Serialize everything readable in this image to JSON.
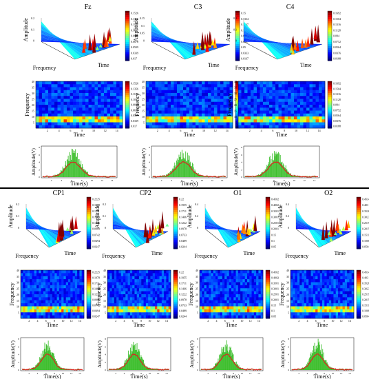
{
  "chart_data": [
    {
      "type": "heatmap",
      "panel": "Fz",
      "title": "Fz",
      "rows": [
        {
          "kind": "surface3d",
          "zlabel": "Amplitude",
          "xlabel": "Frequency",
          "ylabel": "Time",
          "zticks": [
            "0.2",
            "0.1",
            "0"
          ],
          "cbar": [
            "0.1526",
            "0.1356",
            "0.1187",
            "0.1017",
            "0.0848",
            "0.0678",
            "0.0509",
            "0.0339",
            "0.017"
          ]
        },
        {
          "kind": "spectrogram",
          "ylabel": "Frequency",
          "xlabel": "Time",
          "yticks": [
            "40",
            "35",
            "30",
            "25",
            "20",
            "15",
            "10",
            "5"
          ],
          "xticks": [
            "2",
            "4",
            "6",
            "8",
            "10",
            "12",
            "14"
          ],
          "cbar": [
            "0.1526",
            "0.1356",
            "0.1187",
            "0.1017",
            "0.0848",
            "0.0678",
            "0.0509",
            "0.0339",
            "0.017"
          ]
        },
        {
          "kind": "envelope",
          "ylabel": "Amplitude(V)",
          "xlabel": "Time(s)",
          "yticks": [
            "8",
            "6",
            "4",
            "2",
            "0"
          ],
          "xticks": [
            "2",
            "4",
            "6",
            "8",
            "10",
            "12",
            "14"
          ]
        }
      ]
    },
    {
      "type": "heatmap",
      "panel": "C3",
      "title": "C3",
      "rows": [
        {
          "kind": "surface3d",
          "zlabel": "Amplitude",
          "xlabel": "Frequency",
          "ylabel": "Time",
          "zticks": [
            "0.15",
            "0.1",
            "0.05",
            "0"
          ],
          "cbar": [
            "0.15",
            "0.1334",
            "0.1167",
            "0.1",
            "0.0834",
            "0.0667",
            "0.05",
            "0.0333",
            "0.0167"
          ]
        },
        {
          "kind": "spectrogram",
          "ylabel": "Frequency",
          "xlabel": "Time",
          "yticks": [
            "40",
            "35",
            "30",
            "25",
            "20",
            "15",
            "10",
            "5"
          ],
          "xticks": [
            "2",
            "4",
            "6",
            "8",
            "10",
            "12",
            "14"
          ],
          "cbar": [
            "0.15",
            "0.1334",
            "0.1167",
            "0.1",
            "0.0834",
            "0.0667",
            "0.05",
            "0.0333",
            "0.0167"
          ]
        },
        {
          "kind": "envelope",
          "ylabel": "Amplitude(V)",
          "xlabel": "Time(s)",
          "yticks": [
            "8",
            "6",
            "4",
            "2",
            "0"
          ],
          "xticks": [
            "2",
            "4",
            "6",
            "8",
            "10",
            "12",
            "14"
          ]
        }
      ]
    },
    {
      "type": "heatmap",
      "panel": "C4",
      "title": "C4",
      "rows": [
        {
          "kind": "surface3d",
          "zlabel": "Amplitude",
          "xlabel": "Frequency",
          "ylabel": "Time",
          "zticks": [
            "0.2",
            "0.1",
            "0"
          ],
          "cbar": [
            "0.1692",
            "0.1504",
            "0.1316",
            "0.1128",
            "0.094",
            "0.0752",
            "0.0564",
            "0.0376",
            "0.0188"
          ]
        },
        {
          "kind": "spectrogram",
          "ylabel": "Frequency",
          "xlabel": "Time",
          "yticks": [
            "40",
            "35",
            "30",
            "25",
            "20",
            "15",
            "10",
            "5"
          ],
          "xticks": [
            "2",
            "4",
            "6",
            "8",
            "10",
            "12",
            "14"
          ],
          "cbar": [
            "0.1692",
            "0.1504",
            "0.1316",
            "0.1128",
            "0.094",
            "0.0752",
            "0.0564",
            "0.0376",
            "0.0188"
          ]
        },
        {
          "kind": "envelope",
          "ylabel": "Amplitude(V)",
          "xlabel": "Time(s)",
          "yticks": [
            "8",
            "6",
            "4",
            "2",
            "0"
          ],
          "xticks": [
            "2",
            "4",
            "6",
            "8",
            "10",
            "12",
            "14"
          ]
        }
      ]
    },
    {
      "type": "heatmap",
      "panel": "CP1",
      "title": "CP1",
      "rows": [
        {
          "kind": "surface3d",
          "zlabel": "Amplitude",
          "xlabel": "Frequency",
          "ylabel": "Time",
          "zticks": [
            "0.2",
            "0.1",
            "0"
          ],
          "cbar": [
            "0.2225",
            "0.1978",
            "0.173",
            "0.1483",
            "0.1236",
            "0.0989",
            "0.0742",
            "0.0494",
            "0.0247"
          ]
        },
        {
          "kind": "spectrogram",
          "ylabel": "Frequency",
          "xlabel": "Time",
          "yticks": [
            "40",
            "35",
            "30",
            "25",
            "20",
            "15",
            "10",
            "5"
          ],
          "xticks": [
            "2",
            "4",
            "6",
            "8",
            "10",
            "12",
            "14"
          ],
          "cbar": [
            "0.2225",
            "0.1978",
            "0.173",
            "0.1483",
            "0.1236",
            "0.0989",
            "0.0742",
            "0.0494",
            "0.0247"
          ]
        },
        {
          "kind": "envelope",
          "ylabel": "Amplitude(V)",
          "xlabel": "Time(s)",
          "yticks": [
            "8",
            "6",
            "4",
            "2",
            "0"
          ],
          "xticks": [
            "2",
            "4",
            "6",
            "8",
            "10",
            "12",
            "14"
          ]
        }
      ]
    },
    {
      "type": "heatmap",
      "panel": "CP2",
      "title": "CP2",
      "rows": [
        {
          "kind": "surface3d",
          "zlabel": "Amplitude",
          "xlabel": "Frequency",
          "ylabel": "Time",
          "zticks": [
            "0.2",
            "0.1",
            "0"
          ],
          "cbar": [
            "0.22",
            "0.1955",
            "0.1711",
            "0.1466",
            "0.1222",
            "0.0978",
            "0.0733",
            "0.0489",
            "0.0244"
          ]
        },
        {
          "kind": "spectrogram",
          "ylabel": "Frequency",
          "xlabel": "Time",
          "yticks": [
            "40",
            "35",
            "30",
            "25",
            "20",
            "15",
            "10",
            "5"
          ],
          "xticks": [
            "2",
            "4",
            "6",
            "8",
            "10",
            "12",
            "14"
          ],
          "cbar": [
            "0.22",
            "0.1955",
            "0.1711",
            "0.1466",
            "0.1222",
            "0.0978",
            "0.0733",
            "0.0489",
            "0.0244"
          ]
        },
        {
          "kind": "envelope",
          "ylabel": "Amplitude(V)",
          "xlabel": "Time(s)",
          "yticks": [
            "8",
            "6",
            "4",
            "2",
            "0"
          ],
          "xticks": [
            "2",
            "4",
            "6",
            "8",
            "10",
            "12",
            "14"
          ]
        }
      ]
    },
    {
      "type": "heatmap",
      "panel": "O1",
      "title": "O1",
      "rows": [
        {
          "kind": "surface3d",
          "zlabel": "Amplitude",
          "xlabel": "Frequency",
          "ylabel": "Time",
          "zticks": [
            "0.4",
            "0.2",
            "0"
          ],
          "cbar": [
            "0.4502",
            "0.4002",
            "0.3501",
            "0.3001",
            "0.2501",
            "0.2001",
            "0.15",
            "0.1",
            "0.05"
          ]
        },
        {
          "kind": "spectrogram",
          "ylabel": "Frequency",
          "xlabel": "Time",
          "yticks": [
            "40",
            "35",
            "30",
            "25",
            "20",
            "15",
            "10",
            "5"
          ],
          "xticks": [
            "2",
            "4",
            "6",
            "8",
            "10",
            "12",
            "14"
          ],
          "cbar": [
            "0.4502",
            "0.4002",
            "0.3501",
            "0.3001",
            "0.2501",
            "0.2001",
            "0.15",
            "0.1",
            "0.05"
          ]
        },
        {
          "kind": "envelope",
          "ylabel": "Amplitude(V)",
          "xlabel": "Time(s)",
          "yticks": [
            "8",
            "6",
            "4",
            "2",
            "0"
          ],
          "xticks": [
            "2",
            "4",
            "6",
            "8",
            "10",
            "12",
            "14"
          ]
        }
      ]
    },
    {
      "type": "heatmap",
      "panel": "O2",
      "title": "O2",
      "rows": [
        {
          "kind": "surface3d",
          "zlabel": "Amplitude",
          "xlabel": "Frequency",
          "ylabel": "Time",
          "zticks": [
            "0.4",
            "0.2",
            "0"
          ],
          "cbar": [
            "0.4534",
            "0.403",
            "0.3526",
            "0.3023",
            "0.2519",
            "0.2015",
            "0.1511",
            "0.1008",
            "0.0504"
          ]
        },
        {
          "kind": "spectrogram",
          "ylabel": "Frequency",
          "xlabel": "Time",
          "yticks": [
            "40",
            "35",
            "30",
            "25",
            "20",
            "15",
            "10",
            "5"
          ],
          "xticks": [
            "2",
            "4",
            "6",
            "8",
            "10",
            "12",
            "14"
          ],
          "cbar": [
            "0.4534",
            "0.403",
            "0.3526",
            "0.3023",
            "0.2519",
            "0.2015",
            "0.1511",
            "0.1008",
            "0.0504"
          ]
        },
        {
          "kind": "envelope",
          "ylabel": "Amplitude(V)",
          "xlabel": "Time(s)",
          "yticks": [
            "8",
            "6",
            "4",
            "2",
            "0"
          ],
          "xticks": [
            "2",
            "4",
            "6",
            "8",
            "10",
            "12",
            "14"
          ]
        }
      ]
    }
  ]
}
